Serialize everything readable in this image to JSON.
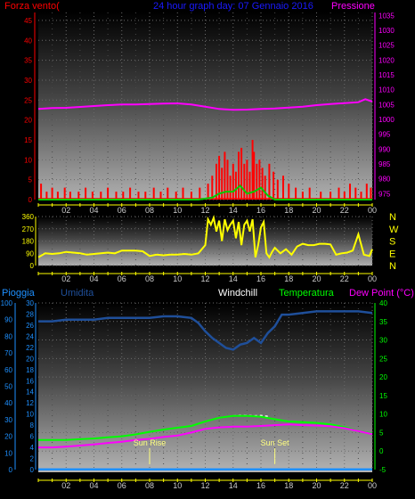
{
  "header": {
    "left_label": "Forza vento",
    "left_unit": "(",
    "title": "24 hour graph day:  07 Gennaio 2016",
    "right_label": "Pressione"
  },
  "legend": {
    "pioggia": "Pioggia",
    "umidita": "Umidita",
    "windchill": "Windchill",
    "temperatura": "Temperatura",
    "dewpoint": "Dew Point (°C)"
  },
  "markers": {
    "sunrise": "Sun Rise",
    "sunset": "Sun Set"
  },
  "compass": [
    "N",
    "W",
    "S",
    "E",
    "N"
  ],
  "colors": {
    "wind_speed": "#ff0000",
    "gust": "#ff0000",
    "wind_avg": "#00cc00",
    "pressure": "#ff00ff",
    "direction": "#ffff00",
    "rain": "#1e90ff",
    "humidity": "#1f4f9a",
    "windchill": "#ffffff",
    "temperature": "#00ff00",
    "dewpoint": "#ff00ff",
    "time_axis": "#ffff00"
  },
  "chart_data": [
    {
      "type": "bar",
      "name": "wind-pressure",
      "x_ticks": [
        "02",
        "04",
        "06",
        "08",
        "10",
        "12",
        "14",
        "16",
        "18",
        "20",
        "22",
        "00"
      ],
      "x_tick_hours": [
        2,
        4,
        6,
        8,
        10,
        12,
        14,
        16,
        18,
        20,
        22,
        24
      ],
      "xlim": [
        0,
        24
      ],
      "left_axis": {
        "ylim": [
          0,
          47
        ],
        "ticks": [
          0,
          5,
          10,
          15,
          20,
          25,
          30,
          35,
          40,
          45
        ]
      },
      "right_axis": {
        "ylim": [
          973,
          1036
        ],
        "ticks": [
          975,
          980,
          985,
          990,
          995,
          1000,
          1005,
          1010,
          1015,
          1020,
          1025,
          1030,
          1035
        ]
      },
      "gust_bars": {
        "hours": [
          0.2,
          0.6,
          1.0,
          1.4,
          1.9,
          2.3,
          2.9,
          3.4,
          3.9,
          4.5,
          5.0,
          5.6,
          6.1,
          6.6,
          7.2,
          7.7,
          8.3,
          8.8,
          9.3,
          9.9,
          10.4,
          11.0,
          11.6,
          12.2,
          12.5,
          12.8,
          13.0,
          13.2,
          13.4,
          13.6,
          13.8,
          14.0,
          14.2,
          14.4,
          14.6,
          14.8,
          15.0,
          15.2,
          15.4,
          15.5,
          15.7,
          15.9,
          16.1,
          16.3,
          16.6,
          16.9,
          17.2,
          17.6,
          18.0,
          18.5,
          19.0,
          19.5,
          20.3,
          21.0,
          21.6,
          22.0,
          22.4,
          22.8,
          23.2,
          23.6,
          23.9
        ],
        "values": [
          4,
          2,
          3,
          2,
          3,
          2,
          2,
          3,
          2,
          2,
          3,
          2,
          2,
          3,
          2,
          2,
          3,
          2,
          3,
          2,
          3,
          2,
          3,
          4,
          6,
          9,
          11,
          8,
          12,
          10,
          6,
          9,
          7,
          12,
          13,
          9,
          10,
          7,
          15,
          12,
          9,
          10,
          8,
          6,
          9,
          7,
          5,
          6,
          4,
          3,
          2,
          3,
          2,
          2,
          3,
          2,
          4,
          3,
          2,
          4,
          3
        ]
      },
      "avg_speed": {
        "hours": [
          0,
          11.5,
          12.5,
          13.0,
          13.5,
          14.0,
          14.5,
          15.0,
          15.5,
          16.0,
          16.5,
          17.0,
          24
        ],
        "values": [
          0,
          0,
          0.5,
          1.5,
          2,
          2,
          3.5,
          1.5,
          2,
          3,
          1,
          0,
          0
        ]
      },
      "pressure": {
        "hours": [
          0,
          1,
          2,
          3,
          4,
          5,
          6,
          7,
          8,
          9,
          10,
          11,
          12,
          13,
          14,
          15,
          16,
          17,
          18,
          19,
          20,
          21,
          22,
          23,
          23.5,
          24
        ],
        "values": [
          1003.5,
          1003.8,
          1003.9,
          1004.2,
          1004.5,
          1004.8,
          1005.0,
          1005.0,
          1005.2,
          1005.3,
          1005.4,
          1005.0,
          1004.3,
          1003.5,
          1003.2,
          1003.3,
          1003.5,
          1003.7,
          1004.0,
          1004.3,
          1004.8,
          1005.2,
          1005.5,
          1005.8,
          1006.8,
          1006.0
        ]
      }
    },
    {
      "type": "line",
      "name": "wind-direction",
      "xlim": [
        0,
        24
      ],
      "ylim": [
        0,
        360
      ],
      "y_ticks": [
        0,
        90,
        180,
        270,
        360
      ],
      "y_tick_labels": [
        "0",
        "90",
        "180",
        "270",
        "360"
      ],
      "direction": {
        "hours": [
          0,
          0.5,
          1.0,
          1.5,
          2.0,
          2.5,
          3.0,
          3.5,
          4.0,
          4.5,
          5.0,
          5.5,
          6.0,
          6.5,
          7.0,
          7.5,
          8.0,
          8.5,
          9.0,
          9.5,
          10.0,
          10.5,
          11.0,
          11.5,
          12.0,
          12.2,
          12.4,
          12.6,
          12.8,
          13.0,
          13.2,
          13.4,
          13.6,
          13.8,
          14.0,
          14.2,
          14.4,
          14.6,
          14.8,
          15.0,
          15.2,
          15.4,
          15.6,
          15.8,
          16.0,
          16.2,
          16.4,
          16.6,
          16.8,
          17.0,
          17.4,
          17.8,
          18.2,
          18.6,
          19.0,
          19.4,
          19.8,
          20.2,
          20.6,
          21.0,
          21.4,
          21.8,
          22.2,
          22.6,
          23.0,
          23.4,
          23.8,
          24.0
        ],
        "values": [
          60,
          90,
          85,
          90,
          100,
          95,
          90,
          80,
          85,
          90,
          95,
          90,
          110,
          110,
          110,
          105,
          70,
          80,
          75,
          80,
          80,
          85,
          80,
          90,
          150,
          340,
          300,
          350,
          250,
          330,
          180,
          340,
          260,
          300,
          330,
          200,
          320,
          150,
          300,
          330,
          250,
          340,
          60,
          150,
          280,
          320,
          90,
          60,
          100,
          130,
          90,
          120,
          80,
          140,
          160,
          150,
          150,
          160,
          160,
          155,
          80,
          90,
          95,
          110,
          230,
          80,
          70,
          120
        ]
      }
    },
    {
      "type": "line",
      "name": "humidity-temperature",
      "xlim": [
        0,
        24
      ],
      "left_outer_axis": {
        "ylim": [
          0,
          100
        ],
        "ticks": [
          0,
          10,
          20,
          30,
          40,
          50,
          60,
          70,
          80,
          90,
          100
        ]
      },
      "left_inner_axis": {
        "ylim": [
          0,
          30
        ],
        "ticks": [
          0,
          2,
          4,
          6,
          8,
          10,
          12,
          14,
          16,
          18,
          20,
          22,
          24,
          26,
          28,
          30
        ]
      },
      "right_axis": {
        "ylim": [
          -5,
          40
        ],
        "ticks": [
          -5,
          0,
          5,
          10,
          15,
          20,
          25,
          30,
          35,
          40
        ]
      },
      "rain": {
        "hours": [
          0,
          4,
          8,
          12,
          16,
          20,
          24
        ],
        "values": [
          0.1,
          0.1,
          0.1,
          0.1,
          0.1,
          0.1,
          0.1
        ]
      },
      "humidity": {
        "hours": [
          0,
          1,
          2,
          3,
          4,
          5,
          6,
          7,
          8,
          9,
          10,
          11,
          11.5,
          12,
          12.5,
          13,
          13.5,
          14,
          14.5,
          15,
          15.5,
          16,
          16.5,
          17,
          17.5,
          18,
          19,
          20,
          21,
          22,
          23,
          24
        ],
        "values": [
          89,
          89,
          90,
          90,
          90,
          91,
          91,
          91,
          91,
          92,
          92,
          91,
          88,
          83,
          79,
          76,
          73,
          72,
          75,
          76,
          79,
          76,
          82,
          86,
          93,
          93,
          94,
          95,
          95,
          95,
          95,
          94
        ]
      },
      "windchill": {
        "hours": [
          14,
          14.5,
          15,
          15.5,
          16,
          16.5
        ],
        "values": [
          9.5,
          9.6,
          9.6,
          9.5,
          9.6,
          9.4
        ]
      },
      "temperature": {
        "hours": [
          0,
          1,
          2,
          3,
          4,
          5,
          6,
          7,
          8,
          9,
          10,
          11,
          12,
          13,
          14,
          15,
          16,
          17,
          18,
          19,
          20,
          21,
          22,
          23,
          24
        ],
        "values": [
          3,
          3,
          3,
          3.2,
          3.4,
          3.7,
          4.0,
          4.5,
          5.2,
          5.8,
          6.3,
          6.8,
          8.0,
          9.0,
          9.5,
          9.5,
          9.3,
          8.6,
          8.0,
          7.8,
          7.6,
          7.2,
          6.5,
          5.4,
          4.8
        ]
      },
      "dewpoint": {
        "hours": [
          0,
          1,
          2,
          3,
          4,
          5,
          6,
          7,
          8,
          9,
          10,
          11,
          12,
          13,
          14,
          15,
          16,
          17,
          18,
          19,
          20,
          21,
          22,
          23,
          24
        ],
        "values": [
          1.0,
          1.0,
          1.2,
          1.5,
          1.8,
          2.2,
          2.5,
          3.0,
          3.3,
          3.8,
          4.2,
          5.0,
          6.0,
          6.4,
          6.6,
          6.6,
          6.8,
          7.0,
          7.2,
          7.0,
          6.9,
          6.7,
          6.2,
          5.4,
          4.6
        ]
      },
      "sunrise_hour": 8,
      "sunset_hour": 17
    }
  ]
}
